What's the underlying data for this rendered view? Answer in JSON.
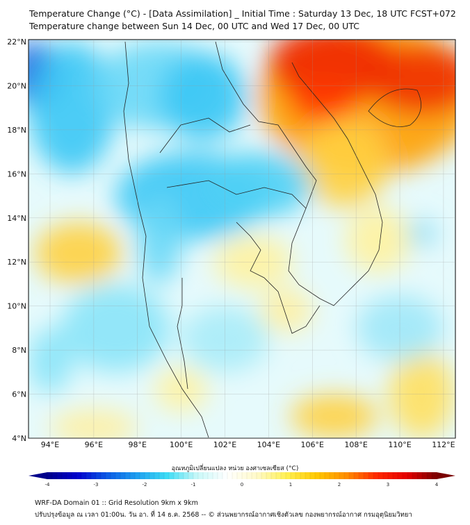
{
  "title": {
    "line1": "Temperature Change (°C) - [Data Assimilation] _ Initial Time : Saturday 13 Dec, 18 UTC FCST+072",
    "line2": "Temperature change between Sun 14 Dec, 00 UTC and Wed 17 Dec, 00 UTC"
  },
  "map": {
    "lon_labels": [
      "94°E",
      "96°E",
      "98°E",
      "100°E",
      "102°E",
      "104°E",
      "106°E",
      "108°E",
      "110°E",
      "112°E"
    ],
    "lat_labels": [
      "22°N",
      "20°N",
      "18°N",
      "16°N",
      "14°N",
      "12°N",
      "10°N",
      "8°N",
      "6°N",
      "4°N"
    ],
    "extent": {
      "lon": [
        93,
        112.5
      ],
      "lat": [
        4,
        22.2
      ]
    }
  },
  "colorbar": {
    "title": "อุณหภูมิเปลี่ยนแปลง หน่วย องศาเซลเซียส (°C)",
    "ticks": [
      "-4",
      "-3",
      "-2",
      "-1",
      "0",
      "1",
      "2",
      "3",
      "4"
    ],
    "range": [
      -4,
      4
    ],
    "colors": [
      "#00008b",
      "#0000cd",
      "#0a5ae6",
      "#1ea0f0",
      "#3cdcf5",
      "#c8f8f8",
      "#ffffff",
      "#fffac8",
      "#fff050",
      "#ffc800",
      "#ff8c00",
      "#ff2800",
      "#e60000",
      "#7a0000"
    ]
  },
  "footer": {
    "line1": "WRF-DA Domain 01 :: Grid Resolution 9km x 9km",
    "line2": "ปรับปรุงข้อมูล ณ เวลา 01:00น. วัน อา. ที่ 14 ธ.ค. 2568 -- © ส่วนพยากรณ์อากาศเชิงตัวเลข กองพยากรณ์อากาศ กรมอุตุนิยมวิทยา"
  }
}
